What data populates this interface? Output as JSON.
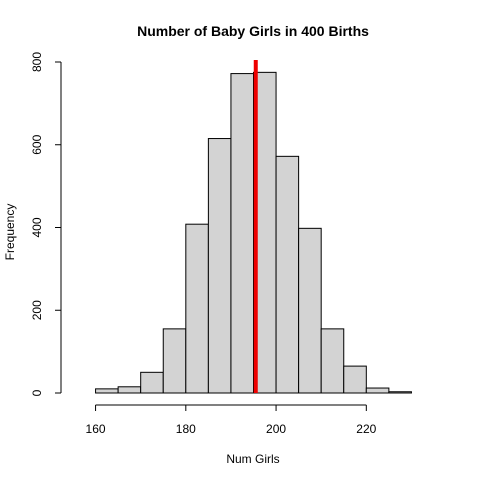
{
  "chart_data": {
    "type": "bar",
    "title": "Number of Baby Girls in 400 Births",
    "xlabel": "Num Girls",
    "ylabel": "Frequency",
    "bins": [
      {
        "start": 160,
        "end": 165,
        "count": 10
      },
      {
        "start": 165,
        "end": 170,
        "count": 15
      },
      {
        "start": 170,
        "end": 175,
        "count": 50
      },
      {
        "start": 175,
        "end": 180,
        "count": 155
      },
      {
        "start": 180,
        "end": 185,
        "count": 408
      },
      {
        "start": 185,
        "end": 190,
        "count": 615
      },
      {
        "start": 190,
        "end": 195,
        "count": 772
      },
      {
        "start": 195,
        "end": 200,
        "count": 775
      },
      {
        "start": 200,
        "end": 205,
        "count": 572
      },
      {
        "start": 205,
        "end": 210,
        "count": 398
      },
      {
        "start": 210,
        "end": 215,
        "count": 155
      },
      {
        "start": 215,
        "end": 220,
        "count": 65
      },
      {
        "start": 220,
        "end": 225,
        "count": 12
      },
      {
        "start": 225,
        "end": 230,
        "count": 3
      }
    ],
    "reference_line": {
      "x": 195.5,
      "color": "#ee0000"
    },
    "xlim": [
      155,
      235
    ],
    "ylim": [
      0,
      800
    ],
    "x_ticks": [
      160,
      180,
      200,
      220
    ],
    "y_ticks": [
      0,
      200,
      400,
      600,
      800
    ],
    "bar_color": "#d3d3d3",
    "grid": false,
    "legend": "none"
  }
}
